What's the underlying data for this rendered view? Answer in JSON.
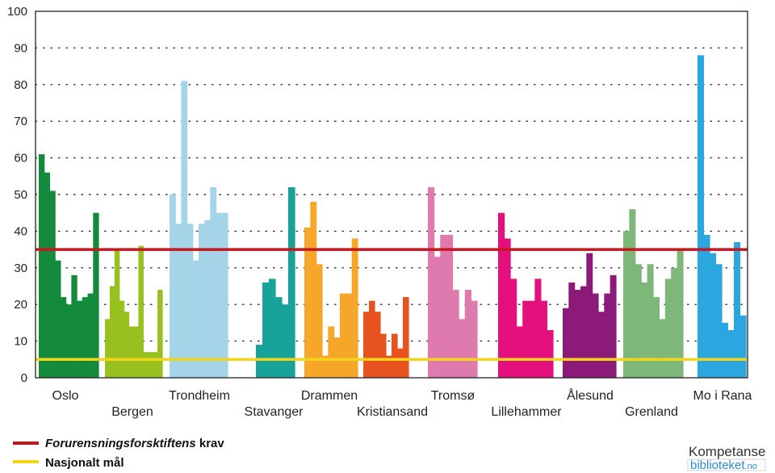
{
  "chart_data": {
    "type": "bar",
    "ylim": [
      0,
      100
    ],
    "yticks": [
      0,
      10,
      20,
      30,
      40,
      50,
      60,
      70,
      80,
      90,
      100
    ],
    "grid": true,
    "reference_lines": [
      {
        "name": "forurensning",
        "value": 35,
        "color": "#c8161e"
      },
      {
        "name": "nasjonalt",
        "value": 5,
        "color": "#f2d41a"
      }
    ],
    "groups": [
      {
        "city": "Oslo",
        "color": "#138a3c",
        "label_row": 0,
        "values": [
          61,
          56,
          51,
          32,
          22,
          20,
          28,
          21,
          22,
          23,
          45
        ]
      },
      {
        "city": "Bergen",
        "color": "#96c11f",
        "label_row": 1,
        "values": [
          16,
          25,
          35,
          21,
          18,
          14,
          14,
          36,
          7,
          7,
          7,
          24
        ]
      },
      {
        "city": "Trondheim",
        "color": "#a5d4e8",
        "label_row": 0,
        "values": [
          50,
          42,
          81,
          42,
          32,
          42,
          43,
          52,
          45,
          45
        ]
      },
      {
        "city": "Stavanger",
        "color": "#17a39a",
        "label_row": 1,
        "values": [
          9,
          26,
          27,
          22,
          20,
          52
        ]
      },
      {
        "city": "Drammen",
        "color": "#f6a629",
        "label_row": 0,
        "values": [
          41,
          48,
          31,
          6,
          14,
          11,
          23,
          23,
          38
        ]
      },
      {
        "city": "Kristiansand",
        "color": "#e8521e",
        "label_row": 1,
        "values": [
          18,
          21,
          18,
          12,
          6,
          12,
          8,
          22
        ]
      },
      {
        "city": "Tromsø",
        "color": "#de7aae",
        "label_row": 0,
        "values": [
          52,
          33,
          39,
          39,
          24,
          16,
          24,
          21
        ]
      },
      {
        "city": "Lillehammer",
        "color": "#e4107e",
        "label_row": 1,
        "values": [
          45,
          38,
          27,
          14,
          21,
          21,
          27,
          21,
          13
        ]
      },
      {
        "city": "Ålesund",
        "color": "#8c1a78",
        "label_row": 0,
        "values": [
          19,
          26,
          24,
          25,
          34,
          23,
          18,
          23,
          28
        ]
      },
      {
        "city": "Grenland",
        "color": "#7db87a",
        "label_row": 1,
        "values": [
          40,
          46,
          31,
          26,
          31,
          22,
          16,
          27,
          30,
          35
        ]
      },
      {
        "city": "Mo i Rana",
        "color": "#2ca6df",
        "label_row": 0,
        "values": [
          88,
          39,
          34,
          31,
          15,
          13,
          37,
          17
        ]
      }
    ]
  },
  "legend": {
    "forurensning": {
      "italic": "Forurensningsforsktiftens",
      "rest": " krav",
      "color": "#c8161e"
    },
    "nasjonalt": {
      "label": "Nasjonalt mål",
      "color": "#f2d41a"
    }
  },
  "brand": {
    "top": "Kompetanse",
    "bottom": "biblioteket",
    "suffix": ".no"
  }
}
